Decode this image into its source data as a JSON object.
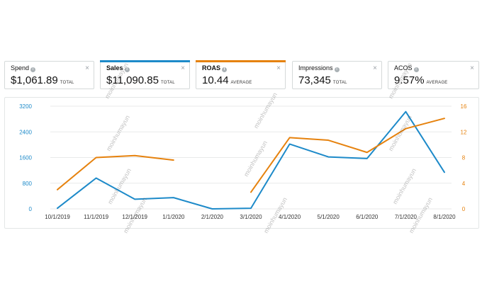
{
  "cards": [
    {
      "label": "Spend",
      "value": "$1,061.89",
      "qualifier": "TOTAL",
      "accent": "",
      "bold": false
    },
    {
      "label": "Sales",
      "value": "$11,090.85",
      "qualifier": "TOTAL",
      "accent": "#1d8ac9",
      "bold": true
    },
    {
      "label": "ROAS",
      "value": "10.44",
      "qualifier": "AVERAGE",
      "accent": "#e6820e",
      "bold": true
    },
    {
      "label": "Impressions",
      "value": "73,345",
      "qualifier": "TOTAL",
      "accent": "",
      "bold": false
    },
    {
      "label": "ACOS",
      "value": "9.57%",
      "qualifier": "AVERAGE",
      "accent": "",
      "bold": false
    }
  ],
  "icons": {
    "info": "info-icon",
    "close": "close-icon"
  },
  "watermark_text": "moinhumayun",
  "chart_data": {
    "type": "line",
    "categories": [
      "10/1/2019",
      "11/1/2019",
      "12/1/2019",
      "1/1/2020",
      "2/1/2020",
      "3/1/2020",
      "4/1/2020",
      "5/1/2020",
      "6/1/2020",
      "7/1/2020",
      "8/1/2020"
    ],
    "series": [
      {
        "name": "Sales",
        "axis": "left",
        "color": "#1d8ac9",
        "values": [
          20,
          960,
          300,
          350,
          0,
          20,
          2020,
          1620,
          1570,
          3030,
          1140
        ]
      },
      {
        "name": "ROAS",
        "axis": "right",
        "color": "#e6820e",
        "values": [
          3.0,
          8.0,
          8.3,
          7.6,
          null,
          2.6,
          11.1,
          10.7,
          8.8,
          12.5,
          14.1
        ]
      }
    ],
    "y_left": {
      "ticks": [
        0,
        800,
        1600,
        2400,
        3200
      ],
      "range": [
        0,
        3200
      ],
      "color": "#1d8ac9"
    },
    "y_right": {
      "ticks": [
        0,
        4,
        8,
        12,
        16
      ],
      "range": [
        0,
        16
      ],
      "color": "#e6820e"
    },
    "grid": "horizontal"
  }
}
